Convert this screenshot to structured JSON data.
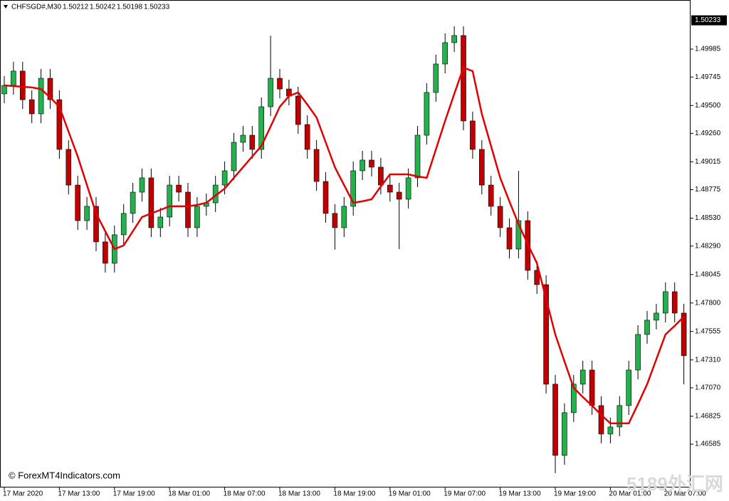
{
  "chart_data": {
    "type": "candlestick",
    "symbol": "CHFSGD#,M30",
    "quote": [
      1.50212,
      1.50242,
      1.50198,
      1.50233
    ],
    "current_price": 1.50233,
    "watermark": "© ForexMT4Indicators.com",
    "watermark_2": "5189外汇网",
    "up_color": "#22b14c",
    "down_color": "#c00000",
    "ma_color": "#e00000",
    "categories": [
      "17 Mar 2020",
      null,
      null,
      null,
      null,
      null,
      "17 Mar 13:00",
      null,
      null,
      null,
      null,
      null,
      "17 Mar 19:00",
      null,
      null,
      null,
      null,
      null,
      "18 Mar 01:00",
      null,
      null,
      null,
      null,
      null,
      "18 Mar 07:00",
      null,
      null,
      null,
      null,
      null,
      "18 Mar 13:00",
      null,
      null,
      null,
      null,
      null,
      "18 Mar 19:00",
      null,
      null,
      null,
      null,
      null,
      "19 Mar 01:00",
      null,
      null,
      null,
      null,
      null,
      "19 Mar 07:00",
      null,
      null,
      null,
      null,
      null,
      "19 Mar 13:00",
      null,
      null,
      null,
      null,
      null,
      "19 Mar 19:00",
      null,
      null,
      null,
      null,
      null,
      "20 Mar 01:00",
      null,
      null,
      null,
      null,
      null,
      "20 Mar 07:00",
      null,
      null
    ],
    "open": [
      1.496,
      1.49673,
      1.49796,
      1.4955,
      1.49428,
      1.49734,
      1.4955,
      1.49122,
      1.48815,
      1.48509,
      1.48632,
      1.48326,
      1.48142,
      1.48387,
      1.48571,
      1.48754,
      1.48877,
      1.48448,
      1.4854,
      1.48815,
      1.48754,
      1.48448,
      1.48632,
      1.48662,
      1.48815,
      1.48938,
      1.49183,
      1.49244,
      1.49122,
      1.49489,
      1.49734,
      1.49642,
      1.49581,
      1.49336,
      1.49122,
      1.48846,
      1.48571,
      1.48448,
      1.48632,
      1.48938,
      1.4903,
      1.48969,
      1.48815,
      1.48754,
      1.48693,
      1.48877,
      1.49244,
      1.49612,
      1.49857,
      1.50041,
      1.50102,
      1.49367,
      1.49122,
      1.48815,
      1.48632,
      1.48448,
      1.48264,
      1.48509,
      1.48081,
      1.47958,
      1.47101,
      1.46488,
      1.46856,
      1.47101,
      1.47223,
      1.46917,
      1.46672,
      1.46733,
      1.46917,
      1.47223,
      1.47529,
      1.47652,
      1.47713,
      1.47897,
      1.47713
    ],
    "high": [
      1.49753,
      1.49876,
      1.49876,
      1.4963,
      1.49814,
      1.49814,
      1.4963,
      1.49202,
      1.48895,
      1.48712,
      1.48712,
      1.48406,
      1.48467,
      1.48651,
      1.48834,
      1.48957,
      1.48957,
      1.4862,
      1.48895,
      1.48895,
      1.48834,
      1.48712,
      1.48742,
      1.48895,
      1.49018,
      1.49263,
      1.49324,
      1.49324,
      1.49569,
      1.501,
      1.49814,
      1.49722,
      1.49661,
      1.49416,
      1.49202,
      1.48926,
      1.48651,
      1.48712,
      1.49018,
      1.4911,
      1.4911,
      1.49049,
      1.48895,
      1.48834,
      1.48957,
      1.49324,
      1.49692,
      1.49937,
      1.50121,
      1.50182,
      1.50182,
      1.49447,
      1.49202,
      1.48895,
      1.48712,
      1.48528,
      1.48938,
      1.48589,
      1.48161,
      1.48038,
      1.47181,
      1.46936,
      1.47181,
      1.47303,
      1.47303,
      1.46997,
      1.46813,
      1.46997,
      1.47303,
      1.47609,
      1.47732,
      1.47793,
      1.47977,
      1.47977,
      1.47793
    ],
    "low": [
      1.4952,
      1.49593,
      1.4947,
      1.49348,
      1.49348,
      1.4947,
      1.49042,
      1.48735,
      1.48429,
      1.48429,
      1.48246,
      1.48062,
      1.48062,
      1.48307,
      1.48491,
      1.48674,
      1.48368,
      1.48368,
      1.4846,
      1.48674,
      1.48368,
      1.48368,
      1.48552,
      1.48582,
      1.48735,
      1.48858,
      1.49103,
      1.49042,
      1.49042,
      1.49409,
      1.49562,
      1.49501,
      1.49256,
      1.49042,
      1.48766,
      1.48491,
      1.4826,
      1.48368,
      1.48552,
      1.48858,
      1.48889,
      1.48735,
      1.48674,
      1.48264,
      1.48613,
      1.48797,
      1.49164,
      1.49532,
      1.49777,
      1.49961,
      1.49287,
      1.49042,
      1.48735,
      1.48552,
      1.48368,
      1.48184,
      1.48184,
      1.48001,
      1.47878,
      1.47021,
      1.46335,
      1.46408,
      1.46776,
      1.47021,
      1.46837,
      1.46592,
      1.46592,
      1.46653,
      1.46837,
      1.47143,
      1.47449,
      1.47572,
      1.47633,
      1.47633,
      1.471
    ],
    "close": [
      1.49673,
      1.49796,
      1.4955,
      1.49428,
      1.49734,
      1.4955,
      1.49122,
      1.48815,
      1.48509,
      1.48632,
      1.48326,
      1.48142,
      1.48387,
      1.48571,
      1.48754,
      1.48877,
      1.48448,
      1.4854,
      1.48815,
      1.48754,
      1.48448,
      1.48632,
      1.48662,
      1.48815,
      1.48938,
      1.49183,
      1.49244,
      1.49122,
      1.49489,
      1.49734,
      1.49642,
      1.49581,
      1.49336,
      1.49122,
      1.48846,
      1.48571,
      1.48448,
      1.48632,
      1.48938,
      1.4903,
      1.48969,
      1.48815,
      1.48754,
      1.48693,
      1.48877,
      1.49244,
      1.49612,
      1.49857,
      1.50041,
      1.50102,
      1.49367,
      1.49122,
      1.48815,
      1.48632,
      1.48448,
      1.48264,
      1.48509,
      1.48081,
      1.47958,
      1.47101,
      1.46488,
      1.46856,
      1.47101,
      1.47223,
      1.46917,
      1.46672,
      1.46733,
      1.46917,
      1.47223,
      1.47529,
      1.47652,
      1.47713,
      1.47897,
      1.47713,
      1.47346
    ],
    "ma": [
      1.49673,
      1.49667,
      1.49661,
      1.49655,
      1.49642,
      1.49569,
      1.49489,
      1.49275,
      1.49061,
      1.48815,
      1.48571,
      1.48417,
      1.48264,
      1.48295,
      1.48417,
      1.4854,
      1.48571,
      1.48601,
      1.48632,
      1.48632,
      1.48632,
      1.48644,
      1.48662,
      1.48724,
      1.48785,
      1.48877,
      1.48969,
      1.49061,
      1.49152,
      1.49318,
      1.49489,
      1.49581,
      1.49612,
      1.49508,
      1.49397,
      1.49183,
      1.48969,
      1.48815,
      1.48662,
      1.48675,
      1.48693,
      1.48803,
      1.48907,
      1.48907,
      1.48907,
      1.48889,
      1.48877,
      1.49122,
      1.49367,
      1.496,
      1.49826,
      1.49796,
      1.49428,
      1.49152,
      1.48877,
      1.48675,
      1.48479,
      1.48307,
      1.48142,
      1.47835,
      1.47529,
      1.47297,
      1.4707,
      1.4699,
      1.46917,
      1.46837,
      1.46764,
      1.46764,
      1.46764,
      1.46929,
      1.47101,
      1.47315,
      1.47529,
      1.47603,
      1.47682
    ],
    "ylim": [
      1.46212,
      1.50408
    ],
    "yticks": [
      1.49985,
      1.49745,
      {
        "value": 1.495,
        "label": "1.49500"
      },
      {
        "value": 1.4926,
        "label": "1.49260"
      },
      1.49015,
      1.48775,
      {
        "value": 1.4853,
        "label": "1.48530"
      },
      {
        "value": 1.4829,
        "label": "1.48290"
      },
      1.48045,
      {
        "value": 1.478,
        "label": "1.47800"
      },
      1.47555,
      {
        "value": 1.4731,
        "label": "1.47310"
      },
      {
        "value": 1.4707,
        "label": "1.47070"
      },
      1.46825,
      1.46585
    ]
  }
}
